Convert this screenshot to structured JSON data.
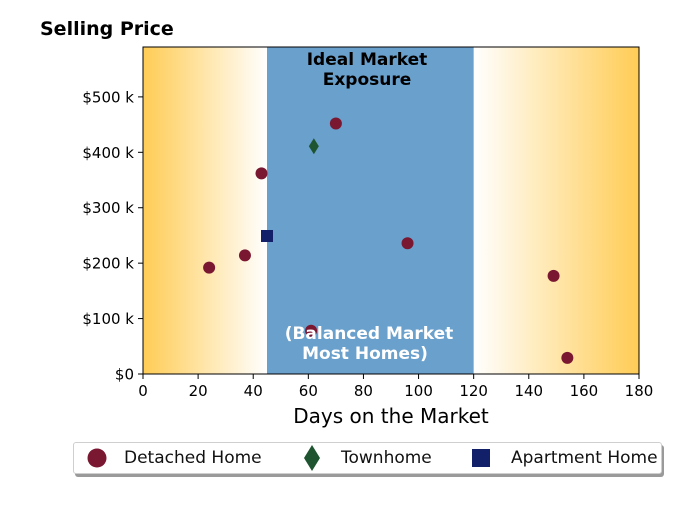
{
  "chart_data": {
    "type": "scatter",
    "title": "Selling Price",
    "xlabel": "Days on the Market",
    "ylabel": "",
    "xlim": [
      0,
      180
    ],
    "ylim": [
      0,
      590000
    ],
    "xticks": [
      0,
      20,
      40,
      60,
      80,
      100,
      120,
      140,
      160,
      180
    ],
    "xtick_labels": [
      "0",
      "20",
      "40",
      "60",
      "80",
      "100",
      "120",
      "140",
      "160",
      "180"
    ],
    "yticks": [
      0,
      100000,
      200000,
      300000,
      400000,
      500000
    ],
    "ytick_labels": [
      "$0",
      "$100 k",
      "$200 k",
      "$300 k",
      "$400 k",
      "$500 k"
    ],
    "grid": false,
    "legend_placement": "bottom-center",
    "ideal_band": {
      "x_range": [
        45,
        120
      ],
      "color": "#6aa0cc"
    },
    "background_gradient": {
      "edge_color": "#ffcc55",
      "center_color": "#ffffff"
    },
    "annotations": {
      "top": [
        "Ideal Market",
        "Exposure"
      ],
      "bottom": [
        "(Balanced Market",
        "Most Homes)"
      ]
    },
    "series": [
      {
        "name": "Detached Home",
        "marker": "circle",
        "color": "#7a1832",
        "points": [
          {
            "x": 24,
            "y": 192000
          },
          {
            "x": 37,
            "y": 214000
          },
          {
            "x": 43,
            "y": 362000
          },
          {
            "x": 61,
            "y": 78000
          },
          {
            "x": 70,
            "y": 452000
          },
          {
            "x": 96,
            "y": 236000
          },
          {
            "x": 149,
            "y": 177000
          },
          {
            "x": 154,
            "y": 29000
          }
        ]
      },
      {
        "name": "Townhome",
        "marker": "diamond",
        "color": "#1e5530",
        "points": [
          {
            "x": 62,
            "y": 411000
          }
        ]
      },
      {
        "name": "Apartment Home",
        "marker": "square",
        "color": "#12206a",
        "points": [
          {
            "x": 45,
            "y": 249000
          }
        ]
      }
    ]
  }
}
